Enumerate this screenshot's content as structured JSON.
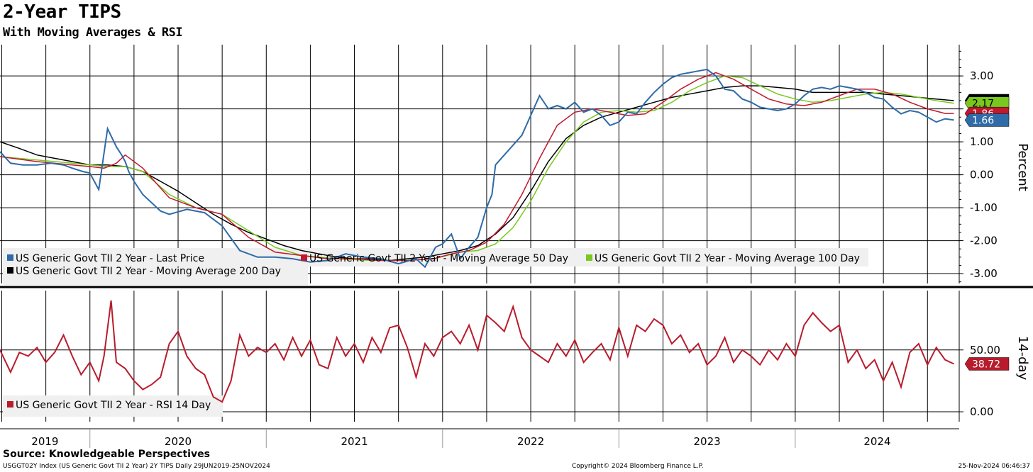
{
  "header": {
    "title": "2-Year TIPS",
    "subtitle": "With Moving Averages & RSI"
  },
  "footer": {
    "source": "Source: Knowledgeable Perspectives",
    "left": "USGGT02Y Index (US Generic Govt TII 2 Year) 2Y TIPS  Daily 29JUN2019-25NOV2024",
    "center": "Copyright© 2024 Bloomberg Finance L.P.",
    "right": "25-Nov-2024 06:46:37"
  },
  "colors": {
    "last_price": "#2e6ba8",
    "ma50": "#c0182d",
    "ma100": "#78c81e",
    "ma200": "#000000",
    "rsi": "#b81c2c"
  },
  "chart_data": [
    {
      "type": "line",
      "ylabel": "Percent",
      "ylim": [
        -3.3,
        3.95
      ],
      "yticks": [
        "3.00",
        "2.00",
        "1.00",
        "0.00",
        "-1.00",
        "-2.00",
        "-3.00"
      ],
      "ytick_values": [
        3,
        2,
        1,
        0,
        -1,
        -2,
        -3
      ],
      "xlim": [
        2019.49,
        2024.93
      ],
      "grid": true,
      "legend_position": "bottom-left",
      "series": [
        {
          "name": "US Generic Govt TII 2 Year - Last Price",
          "x": [
            2019.49,
            2019.55,
            2019.62,
            2019.7,
            2019.78,
            2019.85,
            2019.9,
            2019.96,
            2020.0,
            2020.05,
            2020.1,
            2020.15,
            2020.18,
            2020.2,
            2020.22,
            2020.25,
            2020.3,
            2020.4,
            2020.45,
            2020.55,
            2020.65,
            2020.75,
            2020.85,
            2020.95,
            2021.05,
            2021.15,
            2021.25,
            2021.35,
            2021.45,
            2021.55,
            2021.65,
            2021.75,
            2021.85,
            2021.9,
            2021.93,
            2021.96,
            2022.0,
            2022.05,
            2022.1,
            2022.15,
            2022.2,
            2022.25,
            2022.28,
            2022.3,
            2022.35,
            2022.45,
            2022.55,
            2022.6,
            2022.65,
            2022.7,
            2022.75,
            2022.8,
            2022.85,
            2022.9,
            2022.95,
            2023.0,
            2023.05,
            2023.1,
            2023.15,
            2023.2,
            2023.25,
            2023.3,
            2023.35,
            2023.4,
            2023.45,
            2023.5,
            2023.55,
            2023.6,
            2023.65,
            2023.7,
            2023.75,
            2023.8,
            2023.85,
            2023.9,
            2023.95,
            2024.0,
            2024.05,
            2024.1,
            2024.15,
            2024.2,
            2024.25,
            2024.3,
            2024.35,
            2024.4,
            2024.45,
            2024.5,
            2024.55,
            2024.6,
            2024.65,
            2024.7,
            2024.75,
            2024.8,
            2024.85,
            2024.9
          ],
          "y": [
            0.7,
            0.35,
            0.3,
            0.3,
            0.35,
            0.3,
            0.2,
            0.1,
            0.05,
            -0.45,
            1.4,
            0.85,
            0.6,
            0.4,
            0.1,
            -0.2,
            -0.6,
            -1.1,
            -1.2,
            -1.05,
            -1.15,
            -1.55,
            -2.3,
            -2.5,
            -2.5,
            -2.55,
            -2.65,
            -2.6,
            -2.4,
            -2.5,
            -2.55,
            -2.7,
            -2.55,
            -2.8,
            -2.5,
            -2.2,
            -2.1,
            -1.8,
            -2.55,
            -2.2,
            -1.9,
            -1.0,
            -0.6,
            0.3,
            0.6,
            1.2,
            2.4,
            2.0,
            2.1,
            2.0,
            2.2,
            1.9,
            2.0,
            1.8,
            1.5,
            1.6,
            1.9,
            1.85,
            2.2,
            2.5,
            2.75,
            2.95,
            3.05,
            3.1,
            3.15,
            3.2,
            3.0,
            2.6,
            2.55,
            2.3,
            2.2,
            2.05,
            2.0,
            1.95,
            2.0,
            2.15,
            2.4,
            2.6,
            2.65,
            2.6,
            2.7,
            2.65,
            2.6,
            2.5,
            2.35,
            2.3,
            2.05,
            1.85,
            1.95,
            1.9,
            1.75,
            1.6,
            1.7,
            1.66
          ]
        },
        {
          "name": "US Generic Govt TII 2 Year - Moving Average 50 Day",
          "x": [
            2019.49,
            2019.7,
            2019.9,
            2020.0,
            2020.08,
            2020.15,
            2020.2,
            2020.3,
            2020.45,
            2020.6,
            2020.75,
            2020.9,
            2021.05,
            2021.2,
            2021.35,
            2021.5,
            2021.65,
            2021.8,
            2021.95,
            2022.05,
            2022.15,
            2022.25,
            2022.35,
            2022.45,
            2022.55,
            2022.65,
            2022.75,
            2022.85,
            2022.95,
            2023.05,
            2023.15,
            2023.25,
            2023.35,
            2023.45,
            2023.55,
            2023.65,
            2023.75,
            2023.85,
            2023.95,
            2024.05,
            2024.15,
            2024.25,
            2024.35,
            2024.45,
            2024.55,
            2024.65,
            2024.75,
            2024.85,
            2024.9
          ],
          "y": [
            0.55,
            0.4,
            0.3,
            0.25,
            0.2,
            0.35,
            0.6,
            0.2,
            -0.7,
            -1.0,
            -1.2,
            -1.9,
            -2.35,
            -2.45,
            -2.55,
            -2.55,
            -2.6,
            -2.6,
            -2.55,
            -2.4,
            -2.3,
            -2.05,
            -1.5,
            -0.6,
            0.5,
            1.5,
            1.9,
            2.0,
            1.9,
            1.8,
            1.85,
            2.2,
            2.6,
            2.9,
            3.1,
            2.9,
            2.6,
            2.3,
            2.15,
            2.1,
            2.2,
            2.4,
            2.6,
            2.6,
            2.45,
            2.2,
            2.0,
            1.86,
            1.86
          ]
        },
        {
          "name": "US Generic Govt TII 2 Year - Moving Average 100 Day",
          "x": [
            2019.49,
            2019.7,
            2019.9,
            2020.0,
            2020.1,
            2020.2,
            2020.3,
            2020.45,
            2020.6,
            2020.75,
            2020.9,
            2021.05,
            2021.2,
            2021.4,
            2021.6,
            2021.8,
            2021.95,
            2022.1,
            2022.2,
            2022.3,
            2022.4,
            2022.5,
            2022.6,
            2022.7,
            2022.8,
            2022.9,
            2023.0,
            2023.1,
            2023.2,
            2023.3,
            2023.4,
            2023.5,
            2023.6,
            2023.7,
            2023.8,
            2023.9,
            2024.0,
            2024.1,
            2024.2,
            2024.3,
            2024.4,
            2024.5,
            2024.6,
            2024.7,
            2024.8,
            2024.9
          ],
          "y": [
            0.55,
            0.45,
            0.35,
            0.3,
            0.25,
            0.25,
            0.1,
            -0.6,
            -1.0,
            -1.2,
            -1.7,
            -2.2,
            -2.45,
            -2.55,
            -2.6,
            -2.6,
            -2.55,
            -2.35,
            -2.3,
            -2.1,
            -1.6,
            -0.8,
            0.2,
            1.0,
            1.6,
            1.9,
            1.95,
            1.9,
            1.95,
            2.2,
            2.55,
            2.8,
            3.0,
            2.95,
            2.7,
            2.45,
            2.3,
            2.2,
            2.25,
            2.35,
            2.45,
            2.5,
            2.45,
            2.35,
            2.25,
            2.17
          ]
        },
        {
          "name": "US Generic Govt TII 2 Year - Moving Average 200 Day",
          "x": [
            2019.49,
            2019.6,
            2019.7,
            2019.8,
            2019.9,
            2020.0,
            2020.1,
            2020.2,
            2020.3,
            2020.4,
            2020.5,
            2020.6,
            2020.7,
            2020.8,
            2020.9,
            2021.0,
            2021.1,
            2021.2,
            2021.3,
            2021.4,
            2021.5,
            2021.6,
            2021.7,
            2021.8,
            2021.9,
            2022.0,
            2022.1,
            2022.2,
            2022.3,
            2022.4,
            2022.5,
            2022.6,
            2022.7,
            2022.8,
            2022.9,
            2023.0,
            2023.1,
            2023.2,
            2023.3,
            2023.4,
            2023.5,
            2023.6,
            2023.7,
            2023.8,
            2023.9,
            2024.0,
            2024.1,
            2024.2,
            2024.3,
            2024.4,
            2024.5,
            2024.6,
            2024.7,
            2024.8,
            2024.9
          ],
          "y": [
            1.0,
            0.8,
            0.6,
            0.5,
            0.4,
            0.3,
            0.3,
            0.25,
            0.1,
            -0.2,
            -0.5,
            -0.85,
            -1.2,
            -1.5,
            -1.75,
            -1.95,
            -2.15,
            -2.3,
            -2.4,
            -2.5,
            -2.55,
            -2.55,
            -2.6,
            -2.55,
            -2.5,
            -2.4,
            -2.3,
            -2.15,
            -1.8,
            -1.3,
            -0.5,
            0.4,
            1.1,
            1.5,
            1.75,
            1.9,
            2.05,
            2.2,
            2.35,
            2.45,
            2.55,
            2.65,
            2.7,
            2.7,
            2.65,
            2.6,
            2.5,
            2.5,
            2.5,
            2.5,
            2.45,
            2.4,
            2.35,
            2.3,
            2.25
          ]
        }
      ],
      "last_value_labels": [
        "2.17",
        "1.86",
        "1.66"
      ]
    },
    {
      "type": "line",
      "ylabel": "14-day",
      "ylim": [
        -8,
        98
      ],
      "yticks": [
        "50.00",
        "0.00"
      ],
      "ytick_values": [
        50,
        0
      ],
      "xlim": [
        2019.49,
        2024.93
      ],
      "grid": true,
      "legend_position": "bottom-left",
      "series": [
        {
          "name": "US Generic Govt TII 2 Year - RSI 14 Day",
          "x": [
            2019.49,
            2019.55,
            2019.6,
            2019.65,
            2019.7,
            2019.75,
            2019.8,
            2019.85,
            2019.9,
            2019.95,
            2020.0,
            2020.05,
            2020.08,
            2020.12,
            2020.15,
            2020.2,
            2020.25,
            2020.3,
            2020.35,
            2020.4,
            2020.45,
            2020.5,
            2020.55,
            2020.6,
            2020.65,
            2020.7,
            2020.75,
            2020.8,
            2020.85,
            2020.9,
            2020.95,
            2021.0,
            2021.05,
            2021.1,
            2021.15,
            2021.2,
            2021.25,
            2021.3,
            2021.35,
            2021.4,
            2021.45,
            2021.5,
            2021.55,
            2021.6,
            2021.65,
            2021.7,
            2021.75,
            2021.8,
            2021.85,
            2021.9,
            2021.95,
            2022.0,
            2022.05,
            2022.1,
            2022.15,
            2022.2,
            2022.25,
            2022.3,
            2022.35,
            2022.4,
            2022.45,
            2022.5,
            2022.55,
            2022.6,
            2022.65,
            2022.7,
            2022.75,
            2022.8,
            2022.85,
            2022.9,
            2022.95,
            2023.0,
            2023.05,
            2023.1,
            2023.15,
            2023.2,
            2023.25,
            2023.3,
            2023.35,
            2023.4,
            2023.45,
            2023.5,
            2023.55,
            2023.6,
            2023.65,
            2023.7,
            2023.75,
            2023.8,
            2023.85,
            2023.9,
            2023.95,
            2024.0,
            2024.05,
            2024.1,
            2024.15,
            2024.2,
            2024.25,
            2024.3,
            2024.35,
            2024.4,
            2024.45,
            2024.5,
            2024.55,
            2024.6,
            2024.65,
            2024.7,
            2024.75,
            2024.8,
            2024.85,
            2024.9
          ],
          "y": [
            50,
            32,
            48,
            45,
            52,
            40,
            48,
            62,
            45,
            30,
            40,
            25,
            45,
            90,
            40,
            35,
            25,
            18,
            22,
            28,
            55,
            65,
            45,
            35,
            30,
            12,
            8,
            25,
            62,
            45,
            52,
            48,
            55,
            42,
            60,
            45,
            58,
            38,
            35,
            60,
            45,
            55,
            40,
            60,
            48,
            68,
            70,
            52,
            28,
            55,
            45,
            60,
            65,
            55,
            70,
            50,
            78,
            72,
            65,
            85,
            60,
            50,
            45,
            40,
            55,
            45,
            58,
            40,
            48,
            55,
            42,
            68,
            45,
            70,
            65,
            75,
            70,
            55,
            62,
            48,
            55,
            38,
            45,
            60,
            40,
            50,
            45,
            38,
            50,
            42,
            55,
            45,
            70,
            80,
            72,
            65,
            70,
            40,
            50,
            35,
            42,
            25,
            40,
            20,
            48,
            55,
            38,
            52,
            42,
            38.72
          ]
        }
      ],
      "last_value_labels": [
        "38.72"
      ]
    }
  ],
  "xaxis": {
    "year_labels": [
      "2019",
      "2020",
      "2021",
      "2022",
      "2023",
      "2024"
    ]
  }
}
